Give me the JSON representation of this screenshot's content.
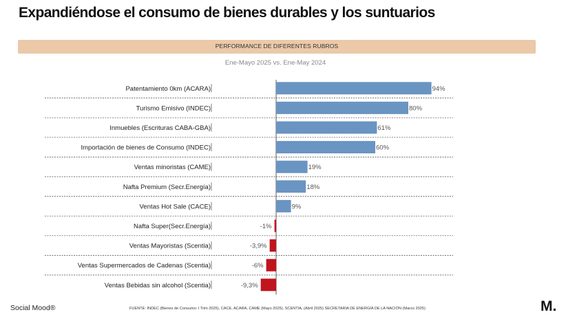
{
  "header": {
    "title": "Expandiéndose el consumo de bienes durables y los suntuarios",
    "banner": "PERFORMANCE DE DIFERENTES RUBROS",
    "subtitle": "Ene-Mayo 2025 vs. Ene-May 2024"
  },
  "colors": {
    "positive": "#6a94c2",
    "negative": "#c0141e",
    "banner": "#ebc9a9"
  },
  "chart_data": {
    "type": "bar",
    "orientation": "horizontal",
    "title": "PERFORMANCE DE DIFERENTES RUBROS",
    "subtitle": "Ene-Mayo 2025 vs. Ene-May 2024",
    "unit": "%",
    "categories": [
      "Patentamiento 0km (ACARA)",
      "Turismo Emisivo (INDEC)",
      "Inmuebles (Escrituras CABA-GBA)",
      "Importación de bienes de Consumo (INDEC)",
      "Ventas minoristas (CAME)",
      "Nafta Premium (Secr.Energía)",
      "Ventas Hot Sale (CACE)",
      "Nafta Super(Secr.Energía)",
      "Ventas Mayoristas (Scentia)",
      "Ventas Supermercados de Cadenas (Scentia)",
      "Ventas Bebidas sin alcohol (Scentia)"
    ],
    "values": [
      94,
      80,
      61,
      60,
      19,
      18,
      9,
      -1,
      -3.9,
      -6,
      -9.3
    ],
    "value_labels": [
      "94%",
      "80%",
      "61%",
      "60%",
      "19%",
      "18%",
      "9%",
      "-1%",
      "-3,9%",
      "-6%",
      "-9,3%"
    ],
    "xlim": [
      -10,
      100
    ]
  },
  "footer": {
    "brand": "Social Mood®",
    "source": "FUENTE: INDEC (Bienes de Consumo: I Trim 2025), CACE, ACARA, CAME (Mayo 2025), SCENTIA, (Abril 2025) SECRETARIA DE ENERGÍA DE LA NACIÓN (Marzo 2025)",
    "logo": "M."
  }
}
